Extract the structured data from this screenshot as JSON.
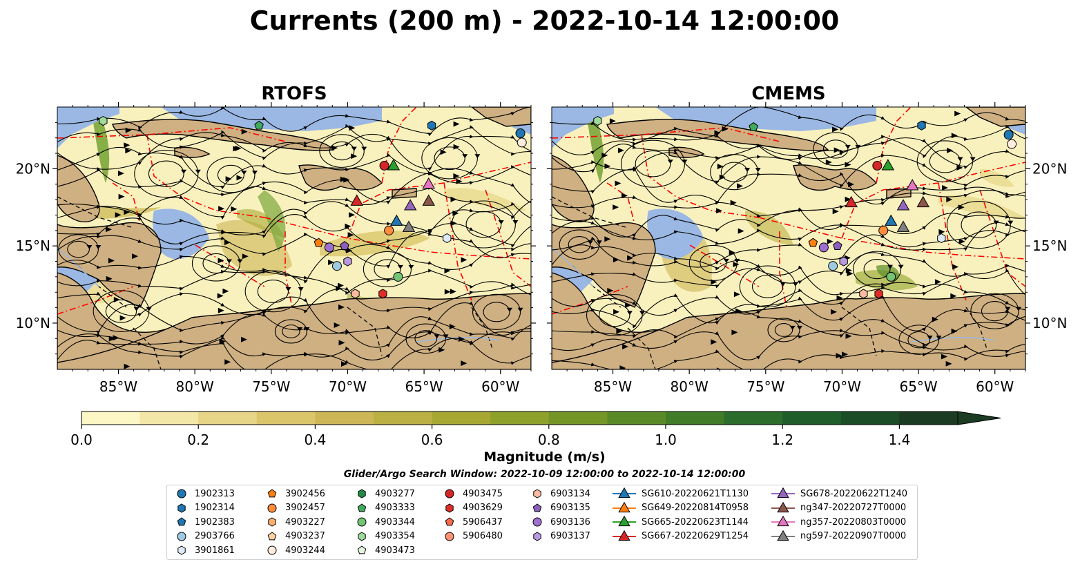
{
  "title": "Currents (200 m) - 2022-10-14 12:00:00",
  "panels": [
    {
      "title": "RTOFS"
    },
    {
      "title": "CMEMS"
    }
  ],
  "map": {
    "lon_range": [
      -89,
      -58
    ],
    "lat_range": [
      7,
      24
    ],
    "lon_ticks": [
      "85°W",
      "80°W",
      "75°W",
      "70°W",
      "65°W",
      "60°W"
    ],
    "lat_ticks": [
      "20°N",
      "15°N",
      "10°N"
    ],
    "colors": {
      "water": "#f9f1bd",
      "land": "#cfb082",
      "shelf": "#9ab8e3",
      "eez": "#ff0000",
      "streamline": "#000000",
      "strong_current": "#7aa63a"
    }
  },
  "colorbar": {
    "label": "Magnitude (m/s)",
    "ticks": [
      "0.0",
      "0.2",
      "0.4",
      "0.6",
      "0.8",
      "1.0",
      "1.2",
      "1.4"
    ],
    "min": 0.0,
    "max": 1.5,
    "extend": "max",
    "colors": [
      "#fdf7c6",
      "#f2e7a6",
      "#e6d587",
      "#dbc56b",
      "#cdb655",
      "#bbb044",
      "#a7a834",
      "#8ea12a",
      "#749627",
      "#5a8a27",
      "#417c29",
      "#2c6d2b",
      "#1f5e2b",
      "#1b4d27",
      "#1b3b22"
    ]
  },
  "search_window": "Glider/Argo Search Window: 2022-10-09 12:00:00 to 2022-10-14 12:00:00",
  "legend": [
    {
      "label": "1902313",
      "marker": "circle",
      "color": "#1f77b4"
    },
    {
      "label": "1902314",
      "marker": "hexagon",
      "color": "#1f77b4"
    },
    {
      "label": "1902383",
      "marker": "pentagon",
      "color": "#1f77b4"
    },
    {
      "label": "2903766",
      "marker": "circle",
      "color": "#9ecae1"
    },
    {
      "label": "3901861",
      "marker": "hexagon",
      "color": "#deebf7"
    },
    {
      "label": "3902456",
      "marker": "pentagon",
      "color": "#ff7f0e"
    },
    {
      "label": "3902457",
      "marker": "circle",
      "color": "#fd8d3c"
    },
    {
      "label": "4903227",
      "marker": "hexagon",
      "color": "#fdae6b"
    },
    {
      "label": "4903237",
      "marker": "pentagon",
      "color": "#fdd0a2"
    },
    {
      "label": "4903244",
      "marker": "circle",
      "color": "#feedde"
    },
    {
      "label": "4903277",
      "marker": "hexagon",
      "color": "#238b45"
    },
    {
      "label": "4903333",
      "marker": "pentagon",
      "color": "#41ab5d"
    },
    {
      "label": "4903344",
      "marker": "circle",
      "color": "#74c476"
    },
    {
      "label": "4903354",
      "marker": "hexagon",
      "color": "#a1d99b"
    },
    {
      "label": "4903473",
      "marker": "pentagon",
      "color": "#e5f5e0"
    },
    {
      "label": "4903475",
      "marker": "circle",
      "color": "#d62728"
    },
    {
      "label": "4903629",
      "marker": "hexagon",
      "color": "#de2d26"
    },
    {
      "label": "5906437",
      "marker": "pentagon",
      "color": "#fb6a4a"
    },
    {
      "label": "5906480",
      "marker": "circle",
      "color": "#fc9272"
    },
    {
      "label": "6903134",
      "marker": "hexagon",
      "color": "#fcbba1"
    },
    {
      "label": "6903135",
      "marker": "pentagon",
      "color": "#8c5fbf"
    },
    {
      "label": "6903136",
      "marker": "circle",
      "color": "#9e6fd1"
    },
    {
      "label": "6903137",
      "marker": "hexagon",
      "color": "#b99ae0"
    },
    {
      "label": "SG610-20220621T1130",
      "marker": "triangle",
      "color": "#1f77b4",
      "line": true
    },
    {
      "label": "SG649-20220814T0958",
      "marker": "triangle",
      "color": "#ff7f0e",
      "line": true
    },
    {
      "label": "SG665-20220623T1144",
      "marker": "triangle",
      "color": "#2ca02c",
      "line": true
    },
    {
      "label": "SG667-20220629T1254",
      "marker": "triangle",
      "color": "#d62728",
      "line": true
    },
    {
      "label": "SG678-20220622T1240",
      "marker": "triangle",
      "color": "#9467bd",
      "line": true
    },
    {
      "label": "ng347-20220727T0000",
      "marker": "triangle",
      "color": "#8c564b",
      "line": true
    },
    {
      "label": "ng357-20220803T0000",
      "marker": "triangle",
      "color": "#e377c2",
      "line": true
    },
    {
      "label": "ng597-20220907T0000",
      "marker": "triangle",
      "color": "#7f7f7f",
      "line": true
    }
  ],
  "platforms": {
    "RTOFS": [
      {
        "id": "1902313",
        "lon": -58.7,
        "lat": 22.3
      },
      {
        "id": "4903244",
        "lon": -58.6,
        "lat": 21.7
      },
      {
        "id": "1902314",
        "lon": -64.5,
        "lat": 22.8
      },
      {
        "id": "4903333",
        "lon": -75.8,
        "lat": 22.8
      },
      {
        "id": "4903354",
        "lon": -86.0,
        "lat": 23.1
      },
      {
        "id": "4903475",
        "lon": -67.6,
        "lat": 20.2
      },
      {
        "id": "SG665-20220623T1144",
        "lon": -67.0,
        "lat": 20.2
      },
      {
        "id": "ng357-20220803T0000",
        "lon": -64.7,
        "lat": 19.0
      },
      {
        "id": "SG667-20220629T1254",
        "lon": -69.4,
        "lat": 17.9
      },
      {
        "id": "SG678-20220622T1240",
        "lon": -65.9,
        "lat": 17.6
      },
      {
        "id": "ng347-20220727T0000",
        "lon": -64.7,
        "lat": 17.9
      },
      {
        "id": "SG610-20220621T1130",
        "lon": -66.8,
        "lat": 16.6
      },
      {
        "id": "3902457",
        "lon": -67.3,
        "lat": 16.0
      },
      {
        "id": "ng597-20220907T0000",
        "lon": -66.0,
        "lat": 16.2
      },
      {
        "id": "3901861",
        "lon": -63.5,
        "lat": 15.5
      },
      {
        "id": "3902456",
        "lon": -71.9,
        "lat": 15.2
      },
      {
        "id": "6903136",
        "lon": -71.2,
        "lat": 14.9
      },
      {
        "id": "6903135",
        "lon": -70.2,
        "lat": 15.0
      },
      {
        "id": "2903766",
        "lon": -70.7,
        "lat": 13.7
      },
      {
        "id": "6903137",
        "lon": -70.0,
        "lat": 14.0
      },
      {
        "id": "4903344",
        "lon": -66.7,
        "lat": 13.0
      },
      {
        "id": "6903134",
        "lon": -69.5,
        "lat": 11.9
      },
      {
        "id": "4903629",
        "lon": -67.7,
        "lat": 11.9
      }
    ],
    "CMEMS": [
      {
        "id": "1902313",
        "lon": -59.1,
        "lat": 22.2
      },
      {
        "id": "4903244",
        "lon": -58.9,
        "lat": 21.6
      },
      {
        "id": "1902314",
        "lon": -64.8,
        "lat": 22.8
      },
      {
        "id": "4903333",
        "lon": -75.8,
        "lat": 22.7
      },
      {
        "id": "4903354",
        "lon": -86.0,
        "lat": 23.1
      },
      {
        "id": "4903475",
        "lon": -67.7,
        "lat": 20.2
      },
      {
        "id": "SG665-20220623T1144",
        "lon": -67.0,
        "lat": 20.2
      },
      {
        "id": "ng357-20220803T0000",
        "lon": -65.4,
        "lat": 18.9
      },
      {
        "id": "SG667-20220629T1254",
        "lon": -69.4,
        "lat": 17.8
      },
      {
        "id": "SG678-20220622T1240",
        "lon": -66.0,
        "lat": 17.6
      },
      {
        "id": "ng347-20220727T0000",
        "lon": -64.7,
        "lat": 17.8
      },
      {
        "id": "SG610-20220621T1130",
        "lon": -66.8,
        "lat": 16.6
      },
      {
        "id": "3902457",
        "lon": -67.3,
        "lat": 16.0
      },
      {
        "id": "ng597-20220907T0000",
        "lon": -66.0,
        "lat": 16.2
      },
      {
        "id": "3901861",
        "lon": -63.5,
        "lat": 15.5
      },
      {
        "id": "3902456",
        "lon": -71.9,
        "lat": 15.2
      },
      {
        "id": "6903136",
        "lon": -71.2,
        "lat": 14.9
      },
      {
        "id": "6903135",
        "lon": -70.3,
        "lat": 15.0
      },
      {
        "id": "2903766",
        "lon": -70.6,
        "lat": 13.7
      },
      {
        "id": "6903137",
        "lon": -69.9,
        "lat": 14.0
      },
      {
        "id": "4903344",
        "lon": -66.8,
        "lat": 13.0
      },
      {
        "id": "6903134",
        "lon": -68.6,
        "lat": 11.9
      },
      {
        "id": "4903629",
        "lon": -67.6,
        "lat": 11.9
      }
    ]
  }
}
